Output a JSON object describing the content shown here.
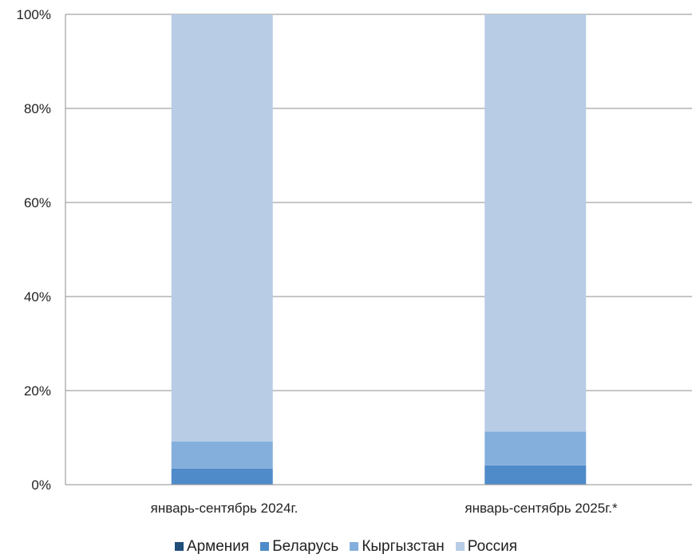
{
  "chart_data": {
    "type": "bar",
    "stacked": true,
    "percent_axis": true,
    "categories": [
      "январь-сентябрь 2024г.",
      "январь-сентябрь 2025г.*"
    ],
    "series": [
      {
        "name": "Армения",
        "values": [
          0.1,
          0.1
        ],
        "color": "#1f4e79"
      },
      {
        "name": "Беларусь",
        "values": [
          3.3,
          4.0
        ],
        "color": "#4f8bc9"
      },
      {
        "name": "Кыргызстан",
        "values": [
          5.8,
          7.2
        ],
        "color": "#84afdc"
      },
      {
        "name": "Россия",
        "values": [
          90.8,
          88.7
        ],
        "color": "#b8cce6"
      }
    ],
    "yticks": [
      "0%",
      "20%",
      "40%",
      "60%",
      "80%",
      "100%"
    ],
    "ylim": [
      0,
      100
    ],
    "grid": true,
    "legend_position": "bottom"
  }
}
